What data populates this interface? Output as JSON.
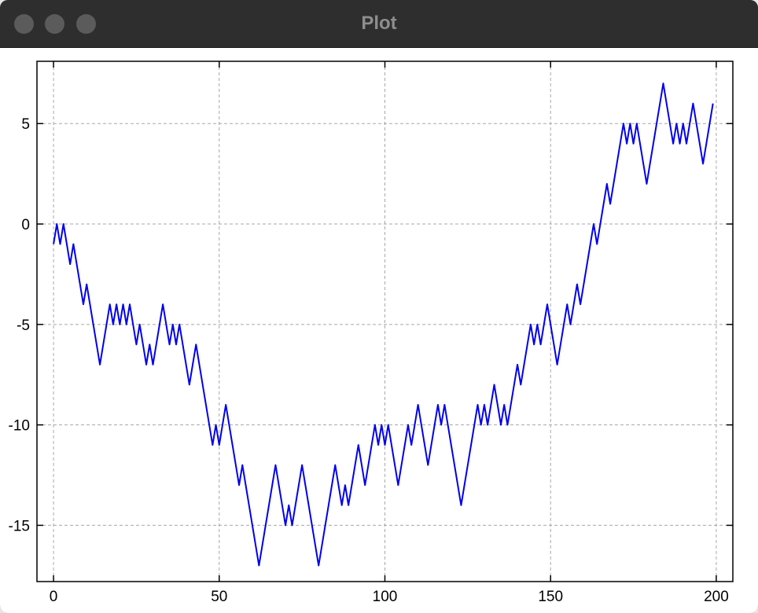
{
  "window": {
    "title": "Plot",
    "controls": [
      "close",
      "minimize",
      "zoom"
    ]
  },
  "chart_data": {
    "type": "line",
    "title": "",
    "xlabel": "",
    "ylabel": "",
    "xlim": [
      -5,
      205
    ],
    "ylim": [
      -17.8,
      8.1
    ],
    "grid": true,
    "x_ticks": [
      0,
      50,
      100,
      150,
      200
    ],
    "y_ticks": [
      5,
      0,
      -5,
      -10,
      -15
    ],
    "x_tick_labels": [
      "0",
      "50",
      "100",
      "150",
      "200"
    ],
    "y_tick_labels": [
      "5",
      "0",
      "-5",
      "-10",
      "-15"
    ],
    "line_color": "#0000ee",
    "series": [
      {
        "values": [
          -1,
          0,
          -1,
          0,
          -1,
          -2,
          -1,
          -2,
          -3,
          -4,
          -3,
          -4,
          -5,
          -6,
          -7,
          -6,
          -5,
          -4,
          -5,
          -4,
          -5,
          -4,
          -5,
          -4,
          -5,
          -6,
          -5,
          -6,
          -7,
          -6,
          -7,
          -6,
          -5,
          -4,
          -5,
          -6,
          -5,
          -6,
          -5,
          -6,
          -7,
          -8,
          -7,
          -6,
          -7,
          -8,
          -9,
          -10,
          -11,
          -10,
          -11,
          -10,
          -9,
          -10,
          -11,
          -12,
          -13,
          -12,
          -13,
          -14,
          -15,
          -16,
          -17,
          -16,
          -15,
          -14,
          -13,
          -12,
          -13,
          -14,
          -15,
          -14,
          -15,
          -14,
          -13,
          -12,
          -13,
          -14,
          -15,
          -16,
          -17,
          -16,
          -15,
          -14,
          -13,
          -12,
          -13,
          -14,
          -13,
          -14,
          -13,
          -12,
          -11,
          -12,
          -13,
          -12,
          -11,
          -10,
          -11,
          -10,
          -11,
          -10,
          -11,
          -12,
          -13,
          -12,
          -11,
          -10,
          -11,
          -10,
          -9,
          -10,
          -11,
          -12,
          -11,
          -10,
          -9,
          -10,
          -9,
          -10,
          -11,
          -12,
          -13,
          -14,
          -13,
          -12,
          -11,
          -10,
          -9,
          -10,
          -9,
          -10,
          -9,
          -8,
          -9,
          -10,
          -9,
          -10,
          -9,
          -8,
          -7,
          -8,
          -7,
          -6,
          -5,
          -6,
          -5,
          -6,
          -5,
          -4,
          -5,
          -6,
          -7,
          -6,
          -5,
          -4,
          -5,
          -4,
          -3,
          -4,
          -3,
          -2,
          -1,
          0,
          -1,
          0,
          1,
          2,
          1,
          2,
          3,
          4,
          5,
          4,
          5,
          4,
          5,
          4,
          3,
          2,
          3,
          4,
          5,
          6,
          7,
          6,
          5,
          4,
          5,
          4,
          5,
          4,
          5,
          6,
          5,
          4,
          3,
          4,
          5,
          6
        ]
      }
    ]
  }
}
